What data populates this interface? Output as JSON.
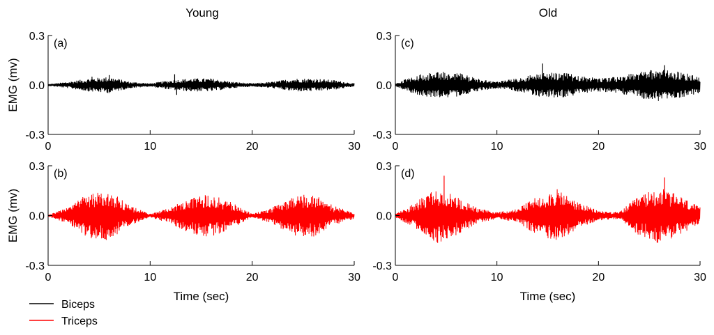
{
  "figure": {
    "column_titles": [
      "Young",
      "Old"
    ],
    "legend": [
      {
        "label": "Biceps",
        "color": "#000000"
      },
      {
        "label": "Triceps",
        "color": "#ff0000"
      }
    ]
  },
  "chart_data": [
    {
      "type": "line",
      "panel_label": "(a)",
      "column": "Young",
      "muscle": "Biceps",
      "color": "#000000",
      "ylabel": "EMG (mv)",
      "xlabel": "",
      "xlim": [
        0,
        30
      ],
      "ylim": [
        -0.3,
        0.3
      ],
      "xticks": [
        0,
        10,
        20,
        30
      ],
      "yticks": [
        "0.3",
        "0.0",
        "-0.3"
      ],
      "envelope": {
        "x": [
          0,
          2,
          4,
          6,
          8,
          10,
          12,
          14,
          16,
          18,
          20,
          22,
          24,
          26,
          28,
          30
        ],
        "amplitude": [
          0.005,
          0.02,
          0.04,
          0.05,
          0.02,
          0.01,
          0.03,
          0.04,
          0.04,
          0.02,
          0.01,
          0.02,
          0.04,
          0.04,
          0.03,
          0.01
        ]
      },
      "spikes": [
        {
          "x": 4.3,
          "y": 0.05
        },
        {
          "x": 6.0,
          "y": 0.06
        },
        {
          "x": 12.4,
          "y": 0.065
        },
        {
          "x": 12.6,
          "y": -0.06
        }
      ]
    },
    {
      "type": "line",
      "panel_label": "(b)",
      "column": "Young",
      "muscle": "Triceps",
      "color": "#ff0000",
      "ylabel": "EMG (mv)",
      "xlabel": "Time (sec)",
      "xlim": [
        0,
        30
      ],
      "ylim": [
        -0.3,
        0.3
      ],
      "xticks": [
        0,
        10,
        20,
        30
      ],
      "yticks": [
        "0.3",
        "0.0",
        "-0.3"
      ],
      "envelope": {
        "x": [
          0,
          2,
          4,
          6,
          8,
          10,
          12,
          14,
          16,
          18,
          20,
          22,
          24,
          26,
          28,
          30
        ],
        "amplitude": [
          0.005,
          0.05,
          0.14,
          0.15,
          0.06,
          0.01,
          0.05,
          0.11,
          0.13,
          0.08,
          0.01,
          0.05,
          0.12,
          0.13,
          0.06,
          0.02
        ]
      },
      "spikes": []
    },
    {
      "type": "line",
      "panel_label": "(c)",
      "column": "Old",
      "muscle": "Biceps",
      "color": "#000000",
      "ylabel": "",
      "xlabel": "",
      "xlim": [
        0,
        30
      ],
      "ylim": [
        -0.3,
        0.3
      ],
      "xticks": [
        0,
        10,
        20,
        30
      ],
      "yticks": [
        "0.3",
        "0.0",
        "-0.3"
      ],
      "envelope": {
        "x": [
          0,
          2,
          4,
          6,
          8,
          10,
          12,
          14,
          16,
          18,
          20,
          22,
          24,
          26,
          28,
          30
        ],
        "amplitude": [
          0.01,
          0.06,
          0.08,
          0.08,
          0.04,
          0.02,
          0.04,
          0.07,
          0.08,
          0.06,
          0.04,
          0.05,
          0.08,
          0.1,
          0.08,
          0.05
        ]
      },
      "spikes": [
        {
          "x": 14.5,
          "y": 0.13
        },
        {
          "x": 26.5,
          "y": 0.12
        }
      ]
    },
    {
      "type": "line",
      "panel_label": "(d)",
      "column": "Old",
      "muscle": "Triceps",
      "color": "#ff0000",
      "ylabel": "",
      "xlabel": "Time (sec)",
      "xlim": [
        0,
        30
      ],
      "ylim": [
        -0.3,
        0.3
      ],
      "xticks": [
        0,
        10,
        20,
        30
      ],
      "yticks": [
        "0.3",
        "0.0",
        "-0.3"
      ],
      "envelope": {
        "x": [
          0,
          2,
          4,
          6,
          8,
          10,
          12,
          14,
          16,
          18,
          20,
          22,
          24,
          26,
          28,
          30
        ],
        "amplitude": [
          0.01,
          0.08,
          0.17,
          0.12,
          0.05,
          0.02,
          0.04,
          0.12,
          0.16,
          0.08,
          0.03,
          0.02,
          0.12,
          0.17,
          0.12,
          0.05
        ]
      },
      "spikes": [
        {
          "x": 4.8,
          "y": 0.24
        },
        {
          "x": 26.5,
          "y": 0.23
        }
      ]
    }
  ]
}
